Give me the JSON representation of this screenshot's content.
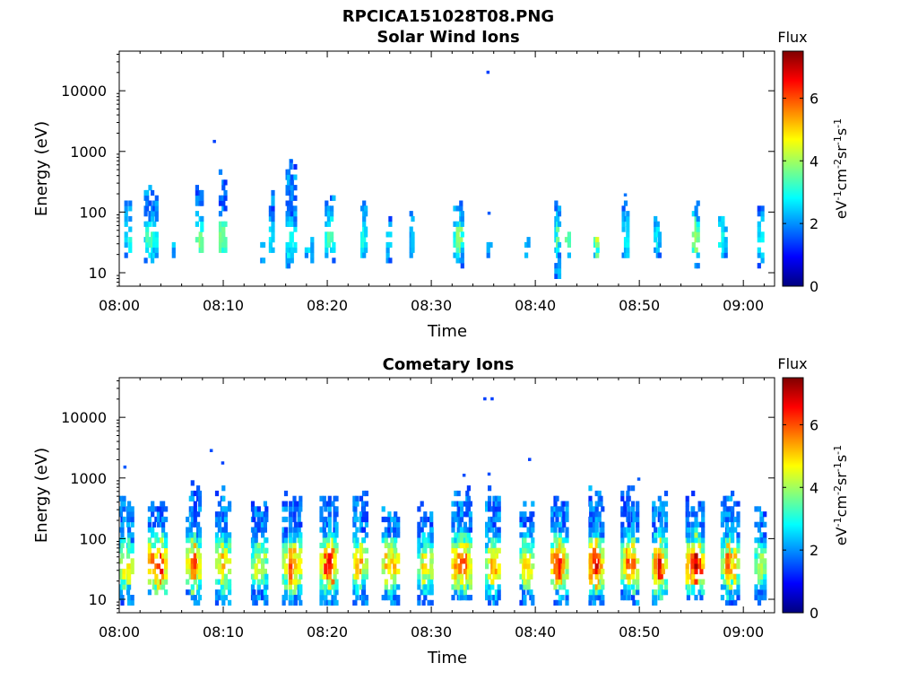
{
  "figure": {
    "title": "RPCICA151028T08.PNG"
  },
  "colormap": {
    "name": "jet",
    "stops": [
      "#00007f",
      "#0000ff",
      "#0080ff",
      "#00ffff",
      "#80ff80",
      "#ffff00",
      "#ff8000",
      "#ff0000",
      "#7f0000"
    ]
  },
  "chart_data": [
    {
      "type": "heatmap",
      "title": "Solar Wind Ions",
      "xlabel": "Time",
      "ylabel": "Energy (eV)",
      "xlim": [
        "08:00",
        "09:03"
      ],
      "ylim": [
        6,
        45000
      ],
      "yscale": "log",
      "x_ticks": [
        "08:00",
        "08:10",
        "08:20",
        "08:30",
        "08:40",
        "08:50",
        "09:00"
      ],
      "y_ticks": [
        "10",
        "100",
        "1000",
        "10000"
      ],
      "colorbar": {
        "label": "Flux",
        "units": "eV-1cm-2sr-1s-1",
        "range": [
          0,
          7.5
        ],
        "ticks": [
          "0",
          "2",
          "4",
          "6"
        ]
      },
      "bursts": [
        {
          "t": 0.7,
          "emin": 18,
          "emax": 180,
          "peak": 3.2,
          "spread": 0.5
        },
        {
          "t": 2.9,
          "emin": 16,
          "emax": 220,
          "peak": 3.6,
          "spread": 1.3
        },
        {
          "t": 4.9,
          "emin": 18,
          "emax": 40,
          "peak": 2.6,
          "spread": 0.4
        },
        {
          "t": 7.6,
          "emin": 18,
          "emax": 320,
          "peak": 3.8,
          "spread": 0.7
        },
        {
          "t": 9.8,
          "emin": 22,
          "emax": 480,
          "peak": 4.0,
          "spread": 0.6
        },
        {
          "t": 13.6,
          "emin": 13,
          "emax": 30,
          "peak": 2.4,
          "spread": 0.3
        },
        {
          "t": 14.4,
          "emin": 22,
          "emax": 230,
          "peak": 3.0,
          "spread": 0.5
        },
        {
          "t": 16.3,
          "emin": 12,
          "emax": 660,
          "peak": 3.3,
          "spread": 1.0
        },
        {
          "t": 18.1,
          "emin": 14,
          "emax": 40,
          "peak": 3.0,
          "spread": 0.6
        },
        {
          "t": 20.1,
          "emin": 17,
          "emax": 210,
          "peak": 3.8,
          "spread": 0.8
        },
        {
          "t": 23.3,
          "emin": 18,
          "emax": 180,
          "peak": 3.2,
          "spread": 0.6
        },
        {
          "t": 25.8,
          "emin": 14,
          "emax": 90,
          "peak": 2.9,
          "spread": 0.5
        },
        {
          "t": 28.0,
          "emin": 20,
          "emax": 80,
          "peak": 2.6,
          "spread": 0.4
        },
        {
          "t": 32.5,
          "emin": 13,
          "emax": 170,
          "peak": 3.9,
          "spread": 0.9
        },
        {
          "t": 35.4,
          "emin": 18,
          "emax": 40,
          "peak": 2.4,
          "spread": 0.3
        },
        {
          "t": 39.0,
          "emin": 18,
          "emax": 40,
          "peak": 2.5,
          "spread": 0.3
        },
        {
          "t": 42.0,
          "emin": 6,
          "emax": 160,
          "peak": 3.4,
          "spread": 0.6
        },
        {
          "t": 42.9,
          "emin": 18,
          "emax": 45,
          "peak": 4.2,
          "spread": 0.4
        },
        {
          "t": 45.7,
          "emin": 18,
          "emax": 45,
          "peak": 4.2,
          "spread": 0.6
        },
        {
          "t": 48.5,
          "emin": 18,
          "emax": 180,
          "peak": 3.0,
          "spread": 0.6
        },
        {
          "t": 51.6,
          "emin": 18,
          "emax": 110,
          "peak": 3.0,
          "spread": 0.6
        },
        {
          "t": 55.2,
          "emin": 12,
          "emax": 130,
          "peak": 4.1,
          "spread": 0.7
        },
        {
          "t": 57.9,
          "emin": 18,
          "emax": 110,
          "peak": 3.2,
          "spread": 0.8
        },
        {
          "t": 61.5,
          "emin": 14,
          "emax": 110,
          "peak": 2.9,
          "spread": 0.3
        }
      ],
      "isolated_points": [
        {
          "t": 35.3,
          "e": 20000,
          "v": 1.4
        },
        {
          "t": 9.0,
          "e": 1450,
          "v": 1.4
        },
        {
          "t": 16.4,
          "e": 680,
          "v": 1.5
        },
        {
          "t": 48.5,
          "e": 190,
          "v": 1.8
        },
        {
          "t": 35.4,
          "e": 95,
          "v": 1.6
        }
      ]
    },
    {
      "type": "heatmap",
      "title": "Cometary Ions",
      "xlabel": "Time",
      "ylabel": "Energy (eV)",
      "xlim": [
        "08:00",
        "09:03"
      ],
      "ylim": [
        6,
        45000
      ],
      "yscale": "log",
      "x_ticks": [
        "08:00",
        "08:10",
        "08:20",
        "08:30",
        "08:40",
        "08:50",
        "09:00"
      ],
      "y_ticks": [
        "10",
        "100",
        "1000",
        "10000"
      ],
      "colorbar": {
        "label": "Flux",
        "units": "eV-1cm-2sr-1s-1",
        "range": [
          0,
          7.5
        ],
        "ticks": [
          "0",
          "2",
          "4",
          "6"
        ]
      },
      "bursts": [
        {
          "t": 0.5,
          "emin": 8,
          "emax": 520,
          "peak": 5.0,
          "spread": 1.3
        },
        {
          "t": 3.5,
          "emin": 12,
          "emax": 450,
          "peak": 6.5,
          "spread": 1.7
        },
        {
          "t": 7.0,
          "emin": 8,
          "emax": 700,
          "peak": 5.8,
          "spread": 1.4
        },
        {
          "t": 9.8,
          "emin": 8,
          "emax": 600,
          "peak": 5.2,
          "spread": 1.4
        },
        {
          "t": 13.3,
          "emin": 8,
          "emax": 500,
          "peak": 4.6,
          "spread": 1.6
        },
        {
          "t": 16.5,
          "emin": 6,
          "emax": 550,
          "peak": 5.8,
          "spread": 1.8
        },
        {
          "t": 20.0,
          "emin": 8,
          "emax": 560,
          "peak": 6.2,
          "spread": 1.7
        },
        {
          "t": 23.0,
          "emin": 8,
          "emax": 500,
          "peak": 5.1,
          "spread": 1.5
        },
        {
          "t": 26.0,
          "emin": 8,
          "emax": 300,
          "peak": 5.6,
          "spread": 1.6
        },
        {
          "t": 29.3,
          "emin": 8,
          "emax": 320,
          "peak": 5.0,
          "spread": 1.5
        },
        {
          "t": 32.8,
          "emin": 8,
          "emax": 620,
          "peak": 6.2,
          "spread": 1.9
        },
        {
          "t": 35.8,
          "emin": 8,
          "emax": 600,
          "peak": 5.6,
          "spread": 1.3
        },
        {
          "t": 39.0,
          "emin": 8,
          "emax": 350,
          "peak": 5.2,
          "spread": 1.3
        },
        {
          "t": 42.2,
          "emin": 8,
          "emax": 500,
          "peak": 6.4,
          "spread": 1.5
        },
        {
          "t": 45.7,
          "emin": 8,
          "emax": 600,
          "peak": 6.6,
          "spread": 1.6
        },
        {
          "t": 48.9,
          "emin": 8,
          "emax": 700,
          "peak": 6.0,
          "spread": 1.6
        },
        {
          "t": 51.8,
          "emin": 8,
          "emax": 500,
          "peak": 6.4,
          "spread": 1.4
        },
        {
          "t": 55.2,
          "emin": 10,
          "emax": 500,
          "peak": 6.8,
          "spread": 1.8
        },
        {
          "t": 58.5,
          "emin": 8,
          "emax": 500,
          "peak": 5.6,
          "spread": 1.7
        },
        {
          "t": 61.5,
          "emin": 8,
          "emax": 300,
          "peak": 4.4,
          "spread": 1.0
        }
      ],
      "isolated_points": [
        {
          "t": 35.0,
          "e": 20000,
          "v": 1.4
        },
        {
          "t": 35.7,
          "e": 20000,
          "v": 1.4
        },
        {
          "t": 39.3,
          "e": 2000,
          "v": 1.4
        },
        {
          "t": 8.7,
          "e": 2800,
          "v": 1.5
        },
        {
          "t": 9.8,
          "e": 1750,
          "v": 1.4
        },
        {
          "t": 0.4,
          "e": 1500,
          "v": 1.6
        },
        {
          "t": 49.8,
          "e": 950,
          "v": 1.6
        },
        {
          "t": 33.0,
          "e": 1100,
          "v": 1.5
        },
        {
          "t": 35.4,
          "e": 1150,
          "v": 1.5
        }
      ]
    }
  ]
}
